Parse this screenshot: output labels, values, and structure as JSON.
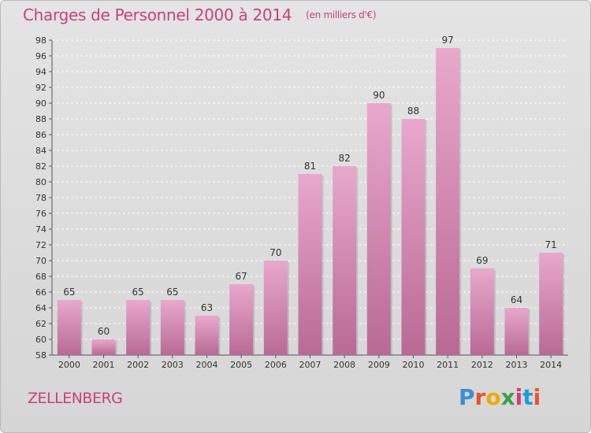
{
  "title": "Charges de Personnel 2000 à 2014",
  "unit_note": "(en milliers d'€)",
  "place": "ZELLENBERG",
  "logo": {
    "text": "Proxiti",
    "colors": [
      "#3a8fd6",
      "#e8542a",
      "#f2a900",
      "#3aa14d",
      "#d63a7c",
      "#1b9ed8",
      "#e8542a"
    ]
  },
  "colors": {
    "bar_top": "#e8a8cc",
    "bar_bottom": "#b96a94",
    "title": "#c8417a"
  },
  "chart_data": {
    "type": "bar",
    "categories": [
      "2000",
      "2001",
      "2002",
      "2003",
      "2004",
      "2005",
      "2006",
      "2007",
      "2008",
      "2009",
      "2010",
      "2011",
      "2012",
      "2013",
      "2014"
    ],
    "values": [
      65,
      60,
      65,
      65,
      63,
      67,
      70,
      81,
      82,
      90,
      88,
      97,
      69,
      64,
      71
    ],
    "title": "Charges de Personnel 2000 à 2014",
    "ylim": [
      58,
      98
    ],
    "yticks": [
      58,
      60,
      62,
      64,
      66,
      68,
      70,
      72,
      74,
      76,
      78,
      80,
      82,
      84,
      86,
      88,
      90,
      92,
      94,
      96,
      98
    ],
    "grid": true,
    "legend": "none"
  }
}
